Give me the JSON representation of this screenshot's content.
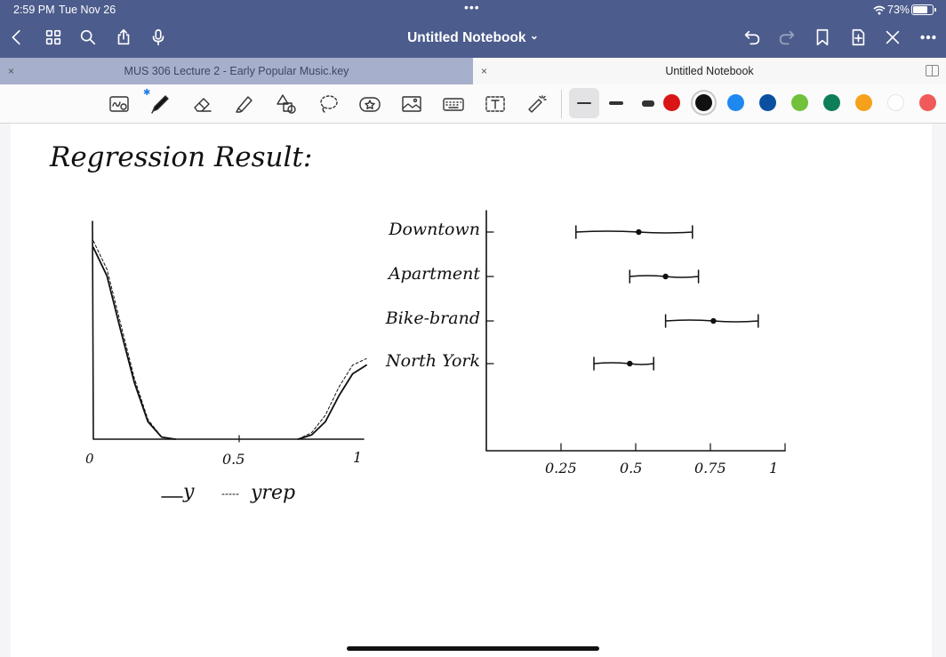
{
  "status_bar": {
    "time": "2:59 PM",
    "date": "Tue Nov 26",
    "multitask_dots": "•••",
    "battery_percent": "73%",
    "battery_level": 0.73
  },
  "nav": {
    "title": "Untitled Notebook",
    "title_chevron": "⌄",
    "left_icons": [
      "back-chevron-icon",
      "grid-icon",
      "search-icon",
      "share-icon",
      "microphone-icon"
    ],
    "right_icons": [
      "undo-icon",
      "redo-icon",
      "bookmark-icon",
      "add-page-icon",
      "close-icon",
      "more-icon"
    ]
  },
  "tabs": [
    {
      "label": "MUS 306 Lecture 2 - Early Popular Music.key",
      "close": "×",
      "active": false
    },
    {
      "label": "Untitled Notebook",
      "close": "×",
      "active": true
    }
  ],
  "toolbar": {
    "tools": [
      "handwriting-recognition-icon",
      "pen-icon",
      "eraser-icon",
      "highlighter-icon",
      "shapes-icon",
      "lasso-icon",
      "sticker-icon",
      "image-icon",
      "keyboard-icon",
      "text-box-icon",
      "laser-pointer-icon"
    ],
    "bluetooth_glyph": "✱",
    "stroke_widths": [
      "thin",
      "medium",
      "thick"
    ],
    "selected_stroke": "thin",
    "colors": [
      "#d91515",
      "#111111",
      "#1f88f0",
      "#0a4fa0",
      "#72c13a",
      "#0e7d5a",
      "#f5a11c",
      "#ffffff",
      "#f05a5a"
    ],
    "selected_color": "#111111"
  },
  "notes": {
    "heading": "Regression Result:",
    "density_plot": {
      "x_ticks": [
        "0",
        "0.5",
        "1"
      ],
      "legend": [
        {
          "style": "solid",
          "label": "y"
        },
        {
          "style": "dashed",
          "label": "yrep"
        }
      ]
    }
  },
  "chart_data": [
    {
      "type": "line",
      "title": "",
      "xlabel": "",
      "ylabel": "",
      "xlim": [
        0,
        1
      ],
      "x_ticks": [
        "0",
        "0.5",
        "1"
      ],
      "series": [
        {
          "name": "y",
          "style": "solid",
          "x": [
            0.0,
            0.05,
            0.1,
            0.15,
            0.2,
            0.25,
            0.3,
            0.75,
            0.8,
            0.85,
            0.9,
            0.95,
            1.0
          ],
          "y": [
            0.88,
            0.75,
            0.5,
            0.26,
            0.08,
            0.01,
            0.0,
            0.0,
            0.02,
            0.08,
            0.2,
            0.3,
            0.34
          ]
        },
        {
          "name": "yrep",
          "style": "dashed",
          "x": [
            0.0,
            0.05,
            0.1,
            0.15,
            0.2,
            0.25,
            0.3,
            0.75,
            0.8,
            0.85,
            0.9,
            0.95,
            1.0
          ],
          "y": [
            0.91,
            0.78,
            0.53,
            0.28,
            0.09,
            0.01,
            0.0,
            0.0,
            0.03,
            0.11,
            0.24,
            0.34,
            0.37
          ]
        }
      ]
    },
    {
      "type": "scatter",
      "title": "",
      "xlabel": "",
      "ylabel": "",
      "xlim": [
        0,
        1
      ],
      "x_ticks": [
        "0.25",
        "0.5",
        "0.75",
        "1"
      ],
      "categories": [
        "Downtown",
        "Apartment",
        "Bike-brand",
        "North York"
      ],
      "points": [
        0.51,
        0.6,
        0.76,
        0.48
      ],
      "intervals": [
        [
          0.3,
          0.69
        ],
        [
          0.48,
          0.71
        ],
        [
          0.6,
          0.91
        ],
        [
          0.36,
          0.56
        ]
      ]
    }
  ]
}
